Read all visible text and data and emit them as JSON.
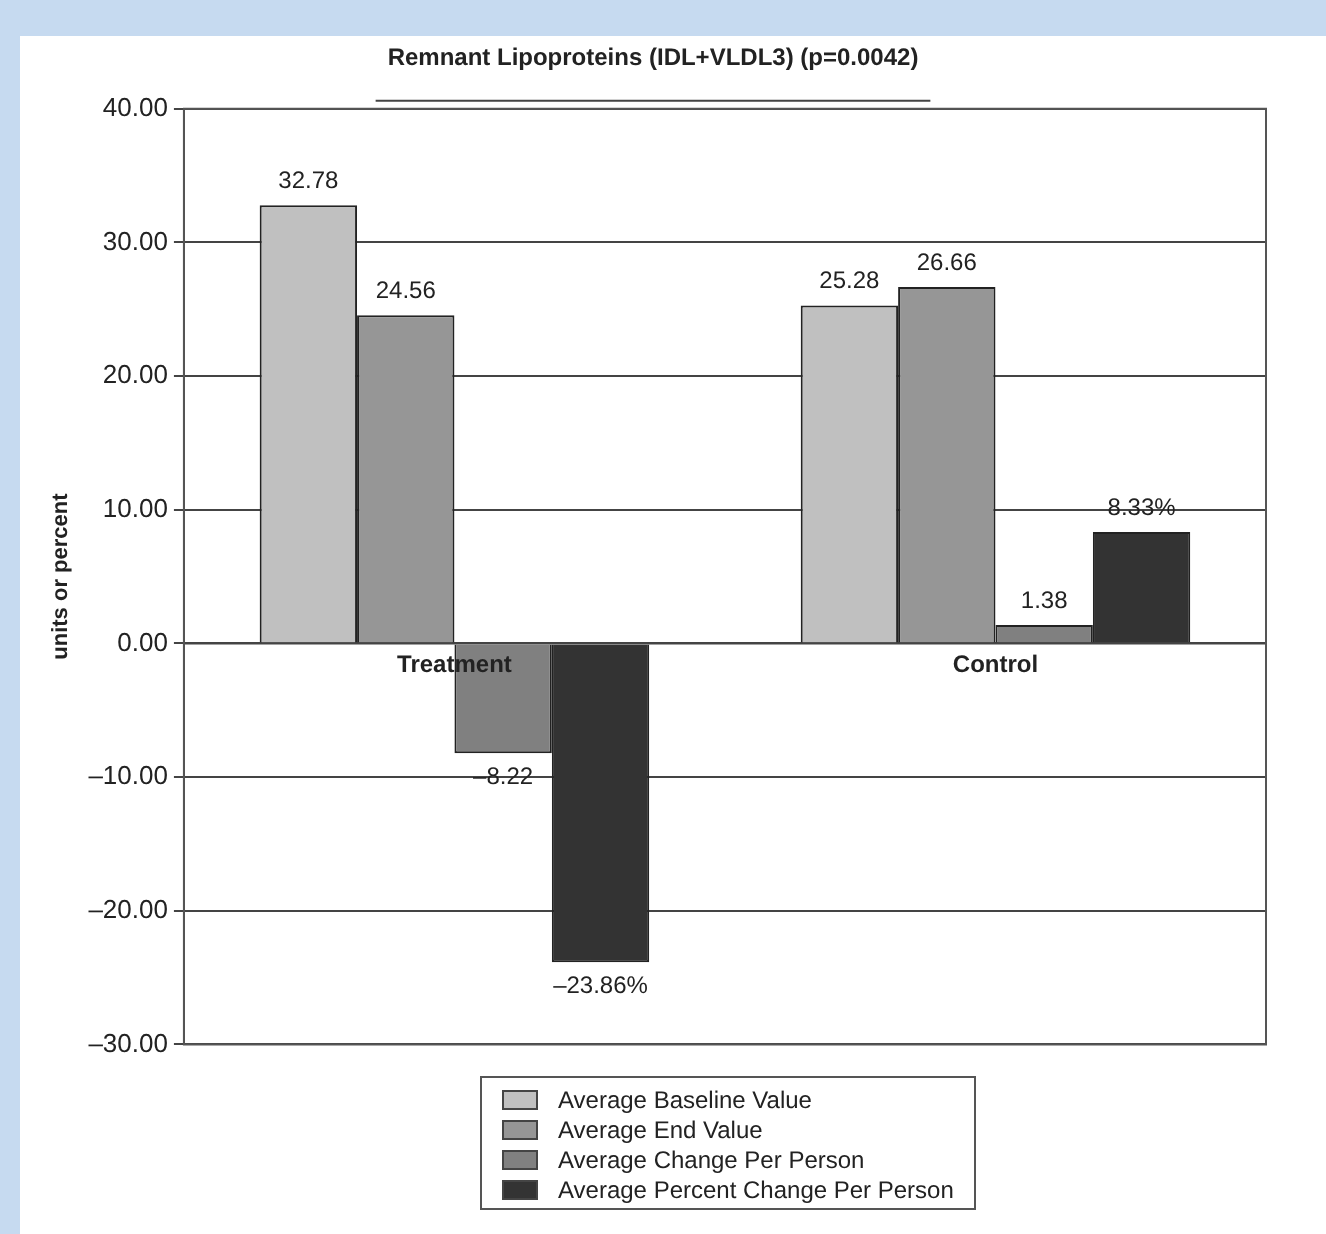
{
  "chart_data": {
    "type": "bar",
    "title": "Remnant Lipoproteins (IDL+VLDL3) (p=0.0042)",
    "ylabel": "units or percent",
    "categories": [
      "Treatment",
      "Control"
    ],
    "series": [
      {
        "name": "Average Baseline Value",
        "color": "#c0c0c0",
        "values": [
          32.78,
          25.28
        ],
        "value_labels": [
          "32.78",
          "25.28"
        ]
      },
      {
        "name": "Average End Value",
        "color": "#969696",
        "values": [
          24.56,
          26.66
        ],
        "value_labels": [
          "24.56",
          "26.66"
        ]
      },
      {
        "name": "Average Change Per Person",
        "color": "#808080",
        "values": [
          -8.22,
          1.38
        ],
        "value_labels": [
          "–8.22",
          "1.38"
        ]
      },
      {
        "name": "Average Percent Change Per Person",
        "color": "#333333",
        "values": [
          -23.86,
          8.33
        ],
        "value_labels": [
          "–23.86%",
          "8.33%"
        ]
      }
    ],
    "ylim": [
      -30,
      40
    ],
    "yticks": [
      {
        "value": -30,
        "label": "–30.00"
      },
      {
        "value": -20,
        "label": "–20.00"
      },
      {
        "value": -10,
        "label": "–10.00"
      },
      {
        "value": 0,
        "label": "0.00"
      },
      {
        "value": 10,
        "label": "10.00"
      },
      {
        "value": 20,
        "label": "20.00"
      },
      {
        "value": 30,
        "label": "30.00"
      },
      {
        "value": 40,
        "label": "40.00"
      }
    ],
    "grid": "y",
    "legend": "bottom"
  }
}
